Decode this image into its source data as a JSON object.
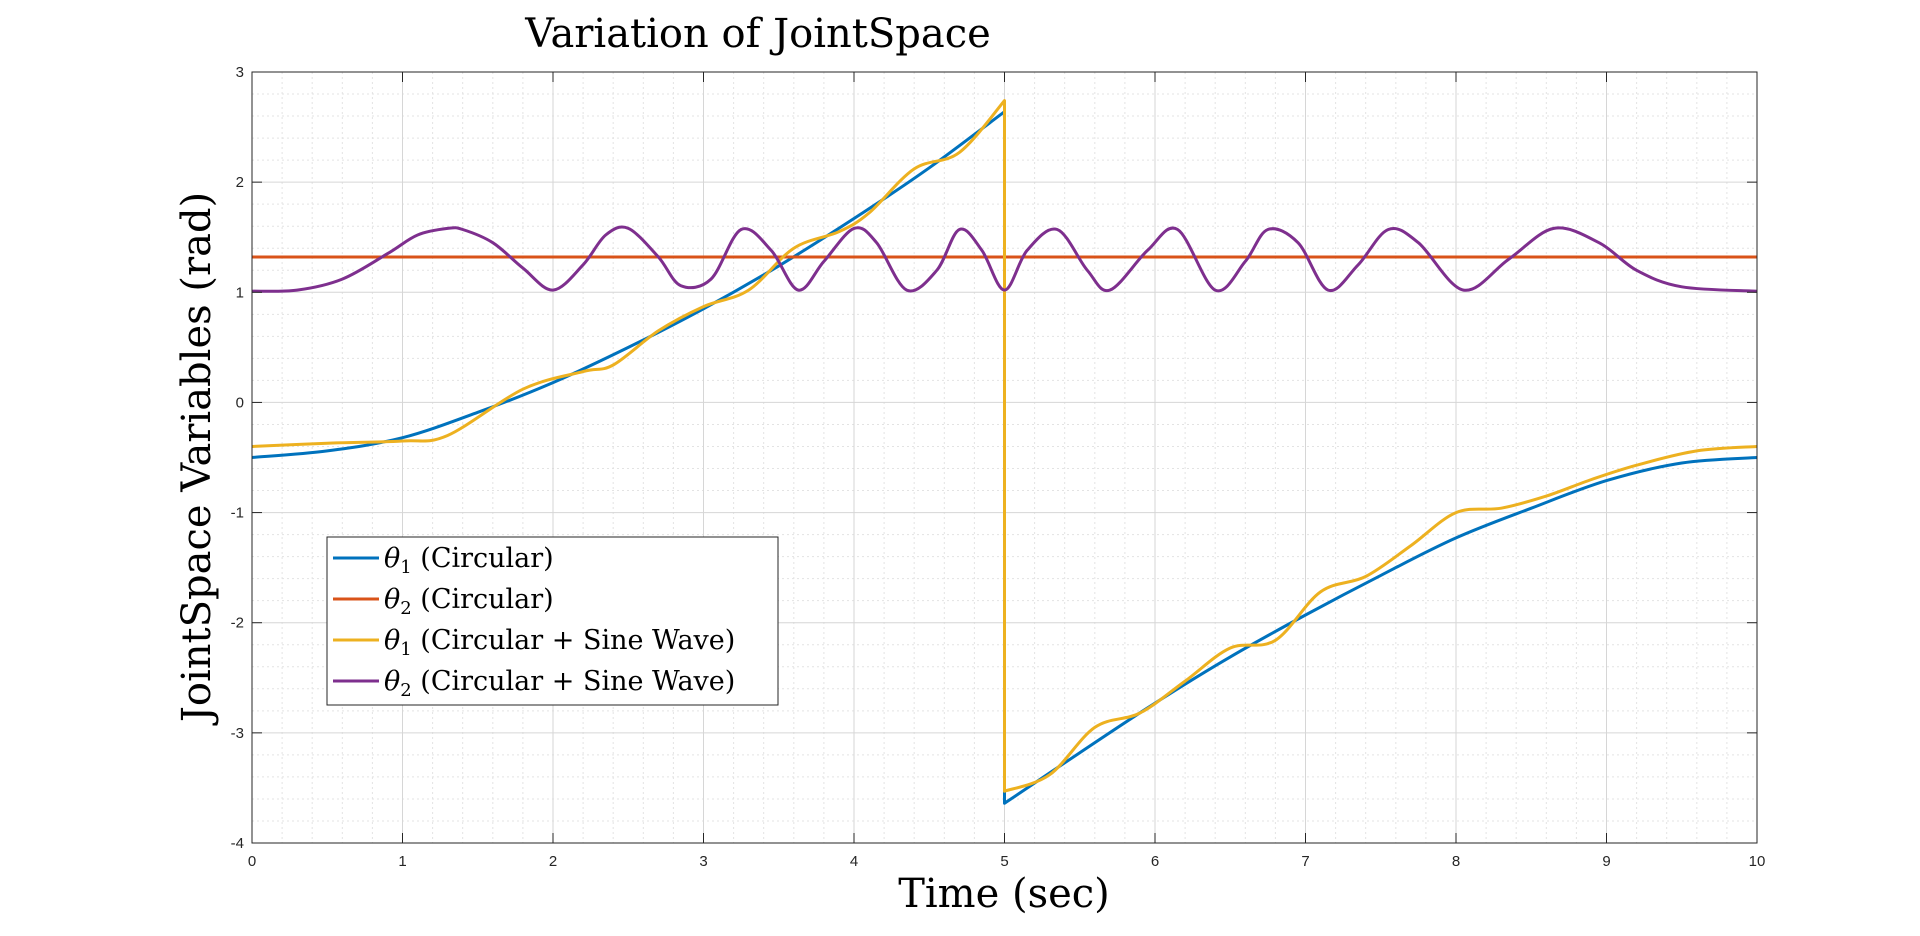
{
  "chart_data": {
    "type": "line",
    "title": "Variation of JointSpace",
    "xlabel": "Time (sec)",
    "ylabel": "JointSpace Variables (rad)",
    "xlim": [
      0,
      10
    ],
    "ylim": [
      -4,
      3
    ],
    "xticks": [
      0,
      1,
      2,
      3,
      4,
      5,
      6,
      7,
      8,
      9,
      10
    ],
    "yticks": [
      -4,
      -3,
      -2,
      -1,
      0,
      1,
      2,
      3
    ],
    "grid": true,
    "minor_grid": true,
    "legend_position": "lower-left",
    "series": [
      {
        "name": "θ1 (Circular)",
        "symbol": "θ",
        "subscript": "1",
        "suffix": "(Circular)",
        "color": "#0072BD",
        "x": [
          0,
          0.5,
          1,
          1.5,
          2,
          2.5,
          3,
          3.5,
          4,
          4.5,
          5,
          5,
          5.5,
          6,
          6.5,
          7,
          7.5,
          8,
          8.5,
          9,
          9.5,
          10
        ],
        "y": [
          -0.5,
          -0.44,
          -0.32,
          -0.09,
          0.18,
          0.5,
          0.85,
          1.24,
          1.67,
          2.13,
          2.64,
          -3.64,
          -3.18,
          -2.73,
          -2.31,
          -1.93,
          -1.57,
          -1.23,
          -0.96,
          -0.71,
          -0.55,
          -0.5
        ]
      },
      {
        "name": "θ2 (Circular)",
        "symbol": "θ",
        "subscript": "2",
        "suffix": "(Circular)",
        "color": "#D95319",
        "x": [
          0,
          10
        ],
        "y": [
          1.32,
          1.32
        ]
      },
      {
        "name": "θ1 (Circular + Sine Wave)",
        "symbol": "θ",
        "subscript": "1",
        "suffix": "(Circular + Sine Wave)",
        "color": "#EDB120",
        "x": [
          0,
          0.5,
          1,
          1.3,
          1.8,
          2.2,
          2.4,
          2.7,
          3.0,
          3.3,
          3.6,
          3.9,
          4.1,
          4.4,
          4.7,
          5,
          5,
          5.3,
          5.6,
          5.9,
          6.2,
          6.5,
          6.8,
          7.1,
          7.4,
          7.7,
          8.0,
          8.3,
          8.6,
          8.9,
          9.2,
          9.6,
          10
        ],
        "y": [
          -0.4,
          -0.37,
          -0.35,
          -0.3,
          0.12,
          0.28,
          0.34,
          0.65,
          0.87,
          1.02,
          1.4,
          1.55,
          1.72,
          2.12,
          2.27,
          2.74,
          -3.53,
          -3.38,
          -2.95,
          -2.82,
          -2.53,
          -2.23,
          -2.16,
          -1.72,
          -1.58,
          -1.3,
          -1.0,
          -0.96,
          -0.85,
          -0.7,
          -0.57,
          -0.44,
          -0.4
        ]
      },
      {
        "name": "θ2 (Circular + Sine Wave)",
        "symbol": "θ",
        "subscript": "2",
        "suffix": "(Circular + Sine Wave)",
        "color": "#7E2F8E",
        "x": [
          0,
          0.3,
          0.6,
          0.9,
          1.1,
          1.3,
          1.4,
          1.6,
          1.8,
          2.0,
          2.2,
          2.35,
          2.5,
          2.7,
          2.85,
          3.05,
          3.25,
          3.45,
          3.63,
          3.8,
          4.0,
          4.15,
          4.35,
          4.55,
          4.7,
          4.85,
          5.0,
          5.15,
          5.35,
          5.55,
          5.7,
          5.95,
          6.15,
          6.4,
          6.6,
          6.75,
          6.95,
          7.15,
          7.35,
          7.55,
          7.75,
          8.05,
          8.35,
          8.65,
          8.95,
          9.2,
          9.5,
          10
        ],
        "y": [
          1.01,
          1.02,
          1.12,
          1.35,
          1.52,
          1.58,
          1.57,
          1.45,
          1.22,
          1.02,
          1.25,
          1.52,
          1.58,
          1.32,
          1.06,
          1.12,
          1.57,
          1.38,
          1.02,
          1.28,
          1.58,
          1.45,
          1.02,
          1.2,
          1.57,
          1.38,
          1.02,
          1.38,
          1.57,
          1.2,
          1.02,
          1.38,
          1.57,
          1.02,
          1.28,
          1.57,
          1.45,
          1.02,
          1.25,
          1.57,
          1.45,
          1.02,
          1.3,
          1.58,
          1.45,
          1.2,
          1.05,
          1.01
        ]
      }
    ]
  }
}
